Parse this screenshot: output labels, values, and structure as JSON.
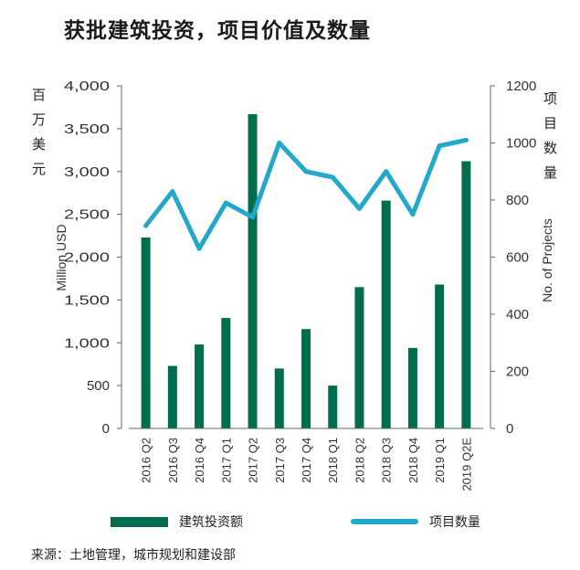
{
  "title": "获批建筑投资，项目价值及数量",
  "left_unit_label": "百万美元",
  "right_unit_label": "项目数量",
  "source": "来源：土地管理，城市规划和建设部",
  "colors": {
    "bar": "#006E4E",
    "line": "#22A8C9",
    "axis_text": "#333333"
  },
  "chart_data": {
    "type": "bar",
    "categories": [
      "2016 Q2",
      "2016 Q3",
      "2016 Q4",
      "2017 Q1",
      "2017 Q2",
      "2017 Q3",
      "2017 Q4",
      "2018 Q1",
      "2018 Q2",
      "2018 Q3",
      "2018 Q4",
      "2019 Q1",
      "2019 Q2E"
    ],
    "ylabel": "Million USD",
    "y2label": "No. of Projects",
    "ylim": [
      0,
      4000
    ],
    "y2lim": [
      0,
      1200
    ],
    "y_ticks": [
      "0",
      "500",
      "1,000",
      "1,500",
      "2,000",
      "2,500",
      "3,000",
      "3,500",
      "4,000"
    ],
    "y2_ticks": [
      "0",
      "200",
      "400",
      "600",
      "800",
      "1000",
      "1200"
    ],
    "grid": false,
    "legend_position": "bottom",
    "series": [
      {
        "name": "建筑投资额",
        "type": "bar",
        "axis": "left",
        "values": [
          2230,
          730,
          980,
          1290,
          3670,
          700,
          1160,
          500,
          1650,
          2660,
          940,
          1680,
          3120
        ]
      },
      {
        "name": "项目数量",
        "type": "line",
        "axis": "right",
        "values": [
          710,
          830,
          630,
          790,
          740,
          1000,
          900,
          880,
          770,
          900,
          750,
          990,
          1010
        ]
      }
    ]
  }
}
